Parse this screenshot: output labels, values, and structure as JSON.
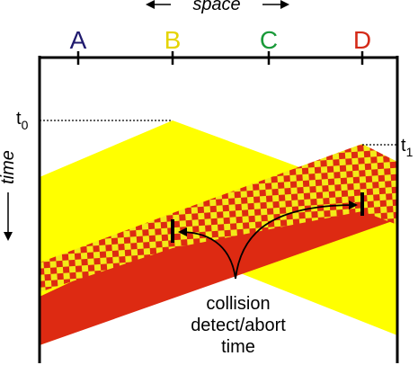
{
  "diagram": {
    "nodes": [
      {
        "label": "A",
        "color": "#1f1a6e"
      },
      {
        "label": "B",
        "color": "#e5d400"
      },
      {
        "label": "C",
        "color": "#1a9a3a"
      },
      {
        "label": "D",
        "color": "#d42a18"
      }
    ],
    "space_label": "space",
    "time_label": "time",
    "t0": {
      "base": "t",
      "sub": "0"
    },
    "t1": {
      "base": "t",
      "sub": "1"
    },
    "annotation": {
      "line1": "collision",
      "line2": "detect/abort",
      "line3": "time"
    },
    "colors": {
      "yellow": "#ffff00",
      "red": "#dd2a12",
      "checker_yellow": "#f3ea18",
      "checker_red": "#dd2a12"
    }
  }
}
